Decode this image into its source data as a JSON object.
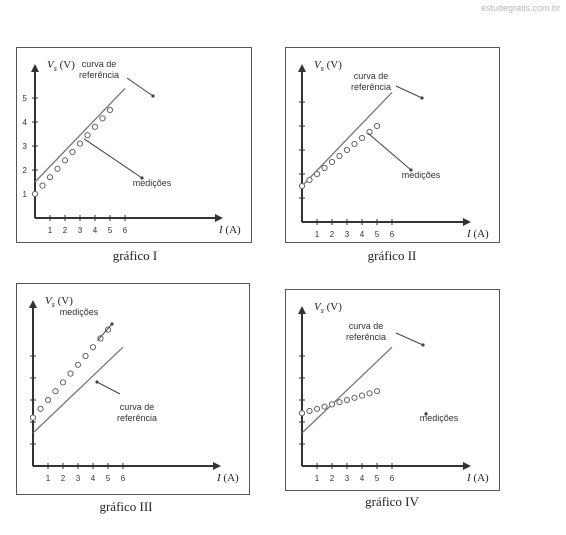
{
  "watermark": "estudegratis.com.br",
  "axis": {
    "y_symbol": "V",
    "y_subscript": "s",
    "y_unit": "(V)",
    "x_symbol": "I",
    "x_unit": "(A)"
  },
  "ticks": [
    "1",
    "2",
    "3",
    "4",
    "5",
    "6"
  ],
  "y_ticks_panel1": [
    "1",
    "2",
    "3",
    "4",
    "5"
  ],
  "panels": [
    {
      "caption": "gráfico I",
      "label_reference_line1": "curva de",
      "label_reference_line2": "referência",
      "label_measurements": "medições",
      "reference_curve": {
        "intercept": 1.5,
        "slope": 0.65
      },
      "measurements": [
        [
          0,
          1.0
        ],
        [
          0.5,
          1.35
        ],
        [
          1,
          1.7
        ],
        [
          1.5,
          2.05
        ],
        [
          2,
          2.4
        ],
        [
          2.5,
          2.75
        ],
        [
          3,
          3.1
        ],
        [
          3.5,
          3.45
        ],
        [
          4,
          3.8
        ],
        [
          4.5,
          4.15
        ],
        [
          5,
          4.5
        ]
      ]
    },
    {
      "caption": "gráfico II",
      "label_reference_line1": "curva de",
      "label_reference_line2": "referência",
      "label_measurements": "medições",
      "reference_curve": {
        "intercept": 1.5,
        "slope": 0.65
      },
      "measurements": [
        [
          0,
          1.5
        ],
        [
          0.5,
          1.75
        ],
        [
          1,
          2.0
        ],
        [
          1.5,
          2.25
        ],
        [
          2,
          2.5
        ],
        [
          2.5,
          2.75
        ],
        [
          3,
          3.0
        ],
        [
          3.5,
          3.25
        ],
        [
          4,
          3.5
        ],
        [
          4.5,
          3.75
        ],
        [
          5,
          4.0
        ]
      ]
    },
    {
      "caption": "gráfico III",
      "label_reference_line1": "curva de",
      "label_reference_line2": "referência",
      "label_measurements": "medições",
      "reference_curve": {
        "intercept": 1.5,
        "slope": 0.65
      },
      "measurements": [
        [
          0,
          2.2
        ],
        [
          0.5,
          2.6
        ],
        [
          1,
          3.0
        ],
        [
          1.5,
          3.4
        ],
        [
          2,
          3.8
        ],
        [
          2.5,
          4.2
        ],
        [
          3,
          4.6
        ],
        [
          3.5,
          5.0
        ],
        [
          4,
          5.4
        ],
        [
          4.5,
          5.8
        ],
        [
          5,
          6.2
        ]
      ]
    },
    {
      "caption": "gráfico IV",
      "label_reference_line1": "curva de",
      "label_reference_line2": "referência",
      "label_measurements": "medições",
      "reference_curve": {
        "intercept": 1.5,
        "slope": 0.65
      },
      "measurements": [
        [
          0,
          2.4
        ],
        [
          0.5,
          2.5
        ],
        [
          1,
          2.6
        ],
        [
          1.5,
          2.7
        ],
        [
          2,
          2.8
        ],
        [
          2.5,
          2.9
        ],
        [
          3,
          3.0
        ],
        [
          3.5,
          3.1
        ],
        [
          4,
          3.2
        ],
        [
          4.5,
          3.3
        ],
        [
          5,
          3.4
        ]
      ]
    }
  ]
}
